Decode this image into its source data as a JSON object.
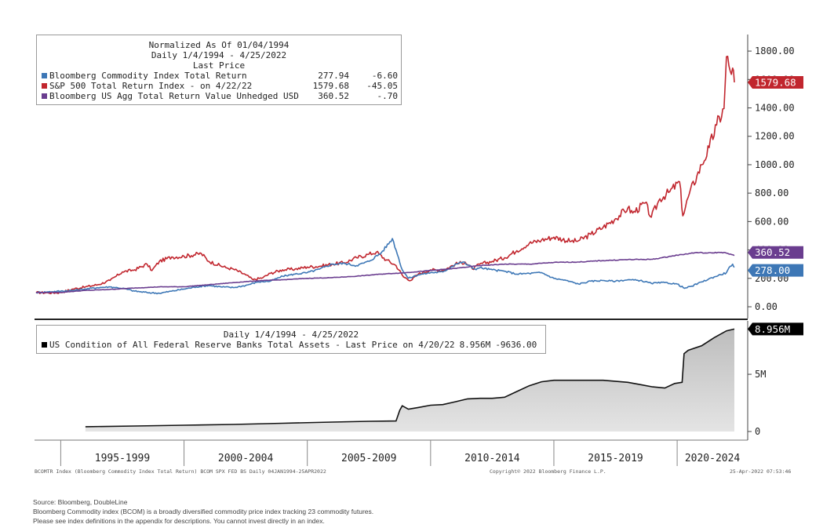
{
  "top_legend": {
    "header": [
      "Normalized As Of 01/04/1994",
      "Daily 1/4/1994 - 4/25/2022",
      "Last Price"
    ],
    "items": [
      {
        "label": "Bloomberg Commodity Index Total Return",
        "last": "277.94",
        "change": "-6.60",
        "color": "#3d77b6"
      },
      {
        "label": "S&P 500 Total Return Index -  on 4/22/22",
        "last": "1579.68",
        "change": "-45.05",
        "color": "#c1262e"
      },
      {
        "label": "Bloomberg US Agg Total Return Value Unhedged USD",
        "last": "360.52",
        "change": "-.70",
        "color": "#6a3d8f"
      }
    ]
  },
  "bottom_legend": {
    "header": "Daily 1/4/1994 - 4/25/2022",
    "items": [
      {
        "label": "US Condition of All Federal Reserve Banks Total Assets - Last Price on 4/20/22",
        "last": "8.956M",
        "change": "-9636.00",
        "color": "#000000"
      }
    ]
  },
  "price_tags": [
    {
      "text": "1579.68",
      "color": "#c1262e"
    },
    {
      "text": "360.52",
      "color": "#6a3d8f"
    },
    {
      "text": "278.00",
      "color": "#3d77b6"
    },
    {
      "text": "8.956M",
      "color": "#000000"
    }
  ],
  "meta_left": "BCOMTR Index (Bloomberg Commodity Index Total Return) BCOM SPX FED BS  Daily 04JAN1994-25APR2022",
  "meta_center": "Copyright© 2022 Bloomberg Finance L.P.",
  "meta_right": "25-Apr-2022 07:53:46",
  "footer": [
    "Source: Bloomberg, DoubleLine",
    "Bloomberg Commodity index (BCOM) is a broadly diversified commodity price index tracking 23 commodity futures.",
    "Please see index definitions in the appendix for descriptions. You cannot invest directly in an index."
  ],
  "chart_data": [
    {
      "type": "line",
      "xlim": [
        1994.0,
        2022.32
      ],
      "ylim": [
        0,
        1900
      ],
      "yticks": [
        0,
        200,
        400,
        600,
        800,
        1000,
        1200,
        1400,
        1600,
        1800
      ],
      "ytick_labels": [
        "0.00",
        "200.00",
        "400.00",
        "600.00",
        "800.00",
        "1000.00",
        "1200.00",
        "1400.00",
        "1600.00",
        "1800.00"
      ],
      "series": [
        {
          "name": "S&P 500 Total Return Index",
          "color": "#c1262e",
          "points": [
            [
              1994.0,
              100
            ],
            [
              1994.5,
              98
            ],
            [
              1995.0,
              100
            ],
            [
              1995.5,
              125
            ],
            [
              1996.0,
              140
            ],
            [
              1996.5,
              155
            ],
            [
              1997.0,
              185
            ],
            [
              1997.5,
              245
            ],
            [
              1998.0,
              260
            ],
            [
              1998.5,
              300
            ],
            [
              1998.7,
              255
            ],
            [
              1999.0,
              320
            ],
            [
              1999.5,
              350
            ],
            [
              2000.0,
              355
            ],
            [
              2000.7,
              375
            ],
            [
              2001.0,
              320
            ],
            [
              2001.7,
              275
            ],
            [
              2002.0,
              265
            ],
            [
              2002.5,
              225
            ],
            [
              2002.8,
              190
            ],
            [
              2003.2,
              205
            ],
            [
              2003.5,
              235
            ],
            [
              2004.0,
              260
            ],
            [
              2004.5,
              265
            ],
            [
              2005.0,
              280
            ],
            [
              2005.5,
              285
            ],
            [
              2006.0,
              300
            ],
            [
              2006.5,
              310
            ],
            [
              2007.0,
              345
            ],
            [
              2007.5,
              370
            ],
            [
              2007.8,
              385
            ],
            [
              2008.2,
              330
            ],
            [
              2008.6,
              290
            ],
            [
              2008.9,
              210
            ],
            [
              2009.2,
              185
            ],
            [
              2009.5,
              230
            ],
            [
              2010.0,
              260
            ],
            [
              2010.5,
              255
            ],
            [
              2011.0,
              300
            ],
            [
              2011.4,
              315
            ],
            [
              2011.7,
              265
            ],
            [
              2012.0,
              300
            ],
            [
              2012.5,
              320
            ],
            [
              2013.0,
              345
            ],
            [
              2013.5,
              395
            ],
            [
              2014.0,
              445
            ],
            [
              2014.5,
              470
            ],
            [
              2015.0,
              490
            ],
            [
              2015.7,
              460
            ],
            [
              2016.0,
              465
            ],
            [
              2016.5,
              510
            ],
            [
              2017.0,
              560
            ],
            [
              2017.5,
              620
            ],
            [
              2018.0,
              695
            ],
            [
              2018.2,
              660
            ],
            [
              2018.7,
              730
            ],
            [
              2018.95,
              630
            ],
            [
              2019.3,
              760
            ],
            [
              2019.7,
              810
            ],
            [
              2020.1,
              880
            ],
            [
              2020.23,
              640
            ],
            [
              2020.5,
              800
            ],
            [
              2020.8,
              920
            ],
            [
              2021.0,
              1000
            ],
            [
              2021.3,
              1120
            ],
            [
              2021.6,
              1280
            ],
            [
              2021.9,
              1395
            ],
            [
              2022.0,
              1760
            ],
            [
              2022.15,
              1660
            ],
            [
              2022.25,
              1680
            ],
            [
              2022.32,
              1579.68
            ]
          ]
        },
        {
          "name": "Bloomberg Commodity Index Total Return",
          "color": "#3d77b6",
          "points": [
            [
              1994.0,
              100
            ],
            [
              1994.5,
              105
            ],
            [
              1995.0,
              110
            ],
            [
              1995.5,
              115
            ],
            [
              1996.0,
              125
            ],
            [
              1996.5,
              135
            ],
            [
              1997.0,
              140
            ],
            [
              1997.5,
              130
            ],
            [
              1998.0,
              110
            ],
            [
              1998.5,
              100
            ],
            [
              1999.0,
              95
            ],
            [
              1999.5,
              110
            ],
            [
              2000.0,
              125
            ],
            [
              2000.5,
              140
            ],
            [
              2001.0,
              150
            ],
            [
              2001.5,
              140
            ],
            [
              2002.0,
              135
            ],
            [
              2002.5,
              150
            ],
            [
              2003.0,
              175
            ],
            [
              2003.5,
              180
            ],
            [
              2004.0,
              215
            ],
            [
              2004.5,
              230
            ],
            [
              2005.0,
              240
            ],
            [
              2005.5,
              265
            ],
            [
              2006.0,
              300
            ],
            [
              2006.5,
              305
            ],
            [
              2007.0,
              290
            ],
            [
              2007.5,
              320
            ],
            [
              2008.0,
              380
            ],
            [
              2008.45,
              480
            ],
            [
              2008.6,
              400
            ],
            [
              2008.85,
              260
            ],
            [
              2009.1,
              200
            ],
            [
              2009.5,
              225
            ],
            [
              2010.0,
              240
            ],
            [
              2010.5,
              245
            ],
            [
              2011.0,
              300
            ],
            [
              2011.3,
              315
            ],
            [
              2011.8,
              265
            ],
            [
              2012.0,
              275
            ],
            [
              2012.5,
              260
            ],
            [
              2013.0,
              250
            ],
            [
              2013.5,
              230
            ],
            [
              2014.0,
              235
            ],
            [
              2014.5,
              240
            ],
            [
              2015.0,
              200
            ],
            [
              2015.5,
              185
            ],
            [
              2016.0,
              160
            ],
            [
              2016.5,
              180
            ],
            [
              2017.0,
              185
            ],
            [
              2017.5,
              180
            ],
            [
              2018.0,
              190
            ],
            [
              2018.5,
              185
            ],
            [
              2018.95,
              165
            ],
            [
              2019.5,
              170
            ],
            [
              2020.0,
              160
            ],
            [
              2020.3,
              130
            ],
            [
              2020.6,
              145
            ],
            [
              2021.0,
              175
            ],
            [
              2021.5,
              210
            ],
            [
              2022.0,
              240
            ],
            [
              2022.15,
              285
            ],
            [
              2022.25,
              300
            ],
            [
              2022.32,
              278
            ]
          ]
        },
        {
          "name": "Bloomberg US Agg Total Return Value Unhedged USD",
          "color": "#6a3d8f",
          "points": [
            [
              1994.0,
              100
            ],
            [
              1995.0,
              101
            ],
            [
              1996.0,
              115
            ],
            [
              1997.0,
              122
            ],
            [
              1998.0,
              132
            ],
            [
              1999.0,
              140
            ],
            [
              2000.0,
              141
            ],
            [
              2001.0,
              155
            ],
            [
              2002.0,
              170
            ],
            [
              2003.0,
              183
            ],
            [
              2004.0,
              190
            ],
            [
              2005.0,
              200
            ],
            [
              2006.0,
              205
            ],
            [
              2007.0,
              215
            ],
            [
              2008.0,
              230
            ],
            [
              2009.0,
              240
            ],
            [
              2010.0,
              255
            ],
            [
              2011.0,
              270
            ],
            [
              2012.0,
              290
            ],
            [
              2013.0,
              300
            ],
            [
              2014.0,
              300
            ],
            [
              2015.0,
              312
            ],
            [
              2016.0,
              315
            ],
            [
              2017.0,
              325
            ],
            [
              2018.0,
              332
            ],
            [
              2019.0,
              334
            ],
            [
              2020.0,
              363
            ],
            [
              2020.8,
              382
            ],
            [
              2021.2,
              378
            ],
            [
              2021.8,
              383
            ],
            [
              2022.0,
              378
            ],
            [
              2022.32,
              360.52
            ]
          ]
        }
      ]
    },
    {
      "type": "area",
      "xlim": [
        1994.0,
        2022.32
      ],
      "ylim": [
        0,
        9.6
      ],
      "yticks": [
        0,
        5
      ],
      "ytick_labels": [
        "0",
        "5M"
      ],
      "x_categories": [
        "1995-1999",
        "2000-2004",
        "2005-2009",
        "2010-2014",
        "2015-2019",
        "2020-2024"
      ],
      "series": [
        {
          "name": "US Condition of All Federal Reserve Banks Total Assets",
          "color": "#000000",
          "points": [
            [
              1996.0,
              0.42
            ],
            [
              1998.0,
              0.48
            ],
            [
              2000.0,
              0.55
            ],
            [
              2002.0,
              0.62
            ],
            [
              2004.0,
              0.72
            ],
            [
              2006.0,
              0.82
            ],
            [
              2007.5,
              0.89
            ],
            [
              2008.6,
              0.92
            ],
            [
              2008.75,
              1.85
            ],
            [
              2008.85,
              2.25
            ],
            [
              2009.1,
              1.95
            ],
            [
              2009.5,
              2.1
            ],
            [
              2010.0,
              2.3
            ],
            [
              2010.5,
              2.35
            ],
            [
              2011.0,
              2.6
            ],
            [
              2011.5,
              2.85
            ],
            [
              2012.0,
              2.9
            ],
            [
              2012.5,
              2.9
            ],
            [
              2013.0,
              3.0
            ],
            [
              2013.5,
              3.5
            ],
            [
              2014.0,
              4.0
            ],
            [
              2014.5,
              4.35
            ],
            [
              2015.0,
              4.48
            ],
            [
              2016.0,
              4.48
            ],
            [
              2017.0,
              4.48
            ],
            [
              2018.0,
              4.3
            ],
            [
              2018.5,
              4.1
            ],
            [
              2019.0,
              3.9
            ],
            [
              2019.5,
              3.8
            ],
            [
              2019.9,
              4.2
            ],
            [
              2020.2,
              4.3
            ],
            [
              2020.28,
              6.8
            ],
            [
              2020.45,
              7.1
            ],
            [
              2021.0,
              7.5
            ],
            [
              2021.5,
              8.2
            ],
            [
              2022.0,
              8.8
            ],
            [
              2022.32,
              8.956
            ]
          ]
        }
      ]
    }
  ]
}
